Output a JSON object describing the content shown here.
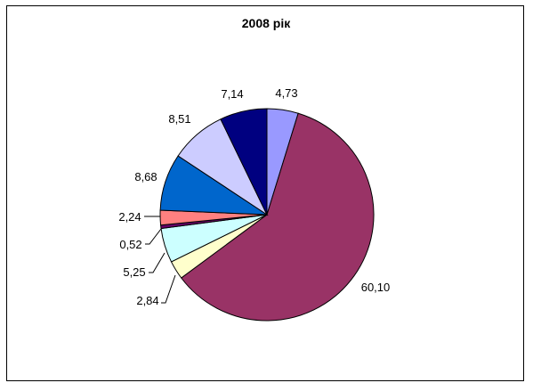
{
  "chart_data": {
    "type": "pie",
    "title": "2008 рік",
    "slices": [
      {
        "label": "4,73",
        "value": 4.73,
        "color": "#9999ff"
      },
      {
        "label": "60,10",
        "value": 60.1,
        "color": "#993366"
      },
      {
        "label": "2,84",
        "value": 2.84,
        "color": "#ffffcc"
      },
      {
        "label": "5,25",
        "value": 5.25,
        "color": "#ccffff"
      },
      {
        "label": "0,52",
        "value": 0.52,
        "color": "#660066"
      },
      {
        "label": "2,24",
        "value": 2.24,
        "color": "#ff8080"
      },
      {
        "label": "8,68",
        "value": 8.68,
        "color": "#0066cc"
      },
      {
        "label": "8,51",
        "value": 8.51,
        "color": "#ccccff"
      },
      {
        "label": "7,14",
        "value": 7.14,
        "color": "#000080"
      }
    ]
  }
}
